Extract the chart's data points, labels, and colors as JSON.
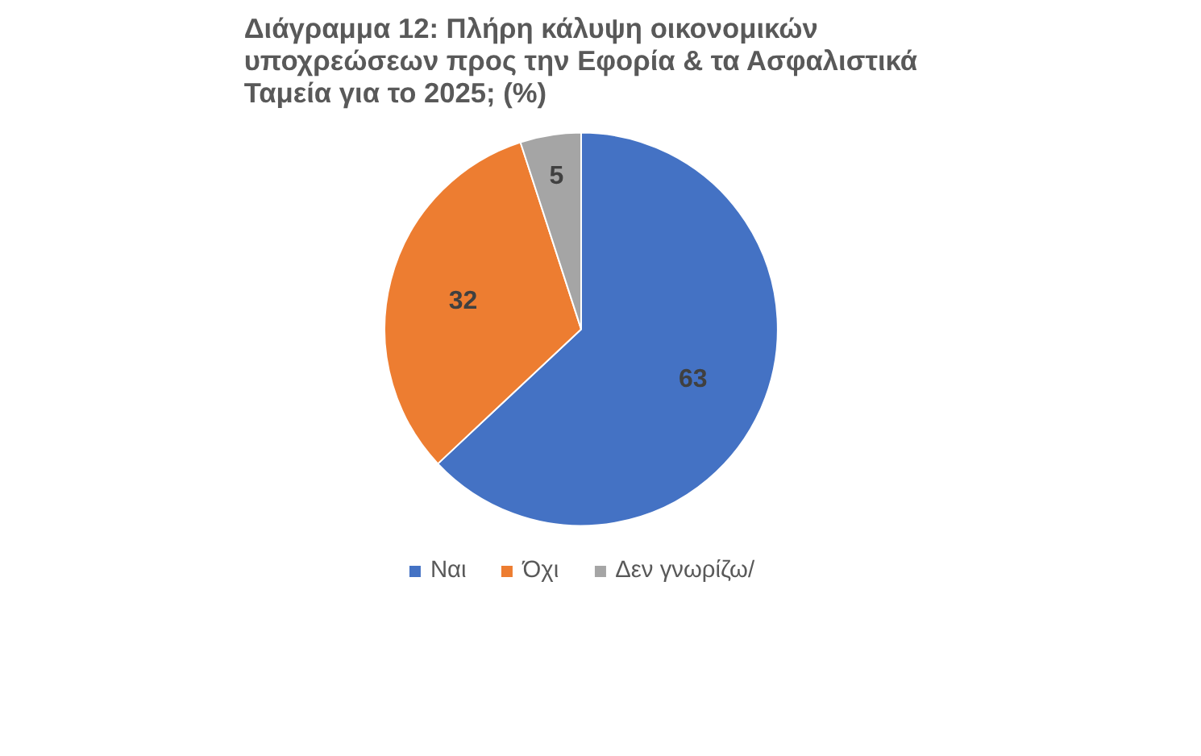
{
  "chart_data": {
    "type": "pie",
    "title": "Διάγραμμα 12: Πλήρη κάλυψη οικονομικών υποχρεώσεων προς την Εφορία & τα Ασφαλιστικά Ταμεία για το 2025; (%)",
    "categories": [
      "Ναι",
      "Όχι",
      "Δεν γνωρίζω/"
    ],
    "values": [
      63,
      32,
      5
    ],
    "colors": [
      "#4472c4",
      "#ed7d31",
      "#a5a5a5"
    ],
    "data_labels": true,
    "legend": "bottom"
  }
}
